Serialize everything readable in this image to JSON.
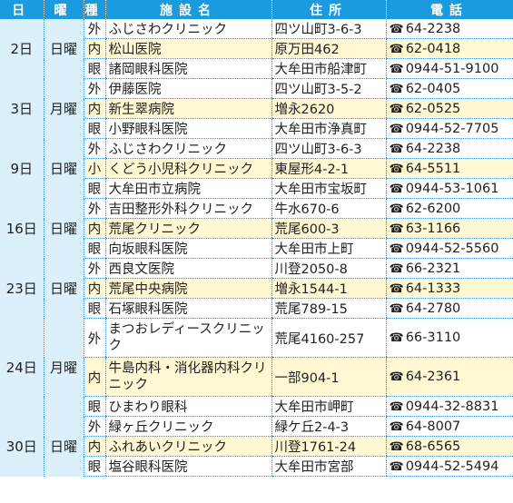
{
  "header": [
    "日",
    "曜",
    "種",
    "施設名",
    "住所",
    "電話"
  ],
  "tel_icon": "☎",
  "groups": [
    {
      "day": "2日",
      "weekday": "日曜",
      "rows": [
        {
          "kind": "外",
          "name": "ふじさわクリニック",
          "address": "四ツ山町3-6-3",
          "phone": "64-2238"
        },
        {
          "kind": "内",
          "name": "松山医院",
          "address": "原万田462",
          "phone": "62-0418"
        },
        {
          "kind": "眼",
          "name": "諸岡眼科医院",
          "address": "大牟田市船津町",
          "phone": "0944-51-9100"
        }
      ]
    },
    {
      "day": "3日",
      "weekday": "月曜",
      "rows": [
        {
          "kind": "外",
          "name": "伊藤医院",
          "address": "四ツ山町3-5-2",
          "phone": "62-0405"
        },
        {
          "kind": "内",
          "name": "新生翠病院",
          "address": "増永2620",
          "phone": "62-0525"
        },
        {
          "kind": "眼",
          "name": "小野眼科医院",
          "address": "大牟田市浄真町",
          "phone": "0944-52-7705"
        }
      ]
    },
    {
      "day": "9日",
      "weekday": "日曜",
      "rows": [
        {
          "kind": "外",
          "name": "ふじさわクリニック",
          "address": "四ツ山町3-6-3",
          "phone": "64-2238"
        },
        {
          "kind": "小",
          "name": "くどう小児科クリニック",
          "address": "東屋形4-2-1",
          "phone": "64-5511"
        },
        {
          "kind": "眼",
          "name": "大牟田市立病院",
          "address": "大牟田市宝坂町",
          "phone": "0944-53-1061"
        }
      ]
    },
    {
      "day": "16日",
      "weekday": "日曜",
      "rows": [
        {
          "kind": "外",
          "name": "吉田整形外科クリニック",
          "address": "牛水670-6",
          "phone": "62-6200"
        },
        {
          "kind": "内",
          "name": "荒尾クリニック",
          "address": "荒尾600-3",
          "phone": "63-1166"
        },
        {
          "kind": "眼",
          "name": "向坂眼科医院",
          "address": "大牟田市上町",
          "phone": "0944-52-5560"
        }
      ]
    },
    {
      "day": "23日",
      "weekday": "日曜",
      "rows": [
        {
          "kind": "外",
          "name": "西良文医院",
          "address": "川登2050-8",
          "phone": "66-2321"
        },
        {
          "kind": "内",
          "name": "荒尾中央病院",
          "address": "増永1544-1",
          "phone": "64-1333"
        },
        {
          "kind": "眼",
          "name": "石塚眼科医院",
          "address": "荒尾789-15",
          "phone": "64-2780"
        }
      ]
    },
    {
      "day": "24日",
      "weekday": "月曜",
      "rows": [
        {
          "kind": "外",
          "name": "まつおレディースクリニック",
          "address": "荒尾4160-257",
          "phone": "66-3110"
        },
        {
          "kind": "内",
          "name": "牛島内科・消化器内科クリニック",
          "address": "一部904-1",
          "phone": "64-2361"
        },
        {
          "kind": "眼",
          "name": "ひまわり眼科",
          "address": "大牟田市岬町",
          "phone": "0944-32-8831"
        }
      ]
    },
    {
      "day": "30日",
      "weekday": "日曜",
      "rows": [
        {
          "kind": "外",
          "name": "緑ヶ丘クリニック",
          "address": "緑ケ丘2-4-3",
          "phone": "64-8007"
        },
        {
          "kind": "内",
          "name": "ふれあいクリニック",
          "address": "川登1761-24",
          "phone": "68-6565"
        },
        {
          "kind": "眼",
          "name": "塩谷眼科医院",
          "address": "大牟田市宮部",
          "phone": "0944-52-5494"
        }
      ]
    }
  ]
}
